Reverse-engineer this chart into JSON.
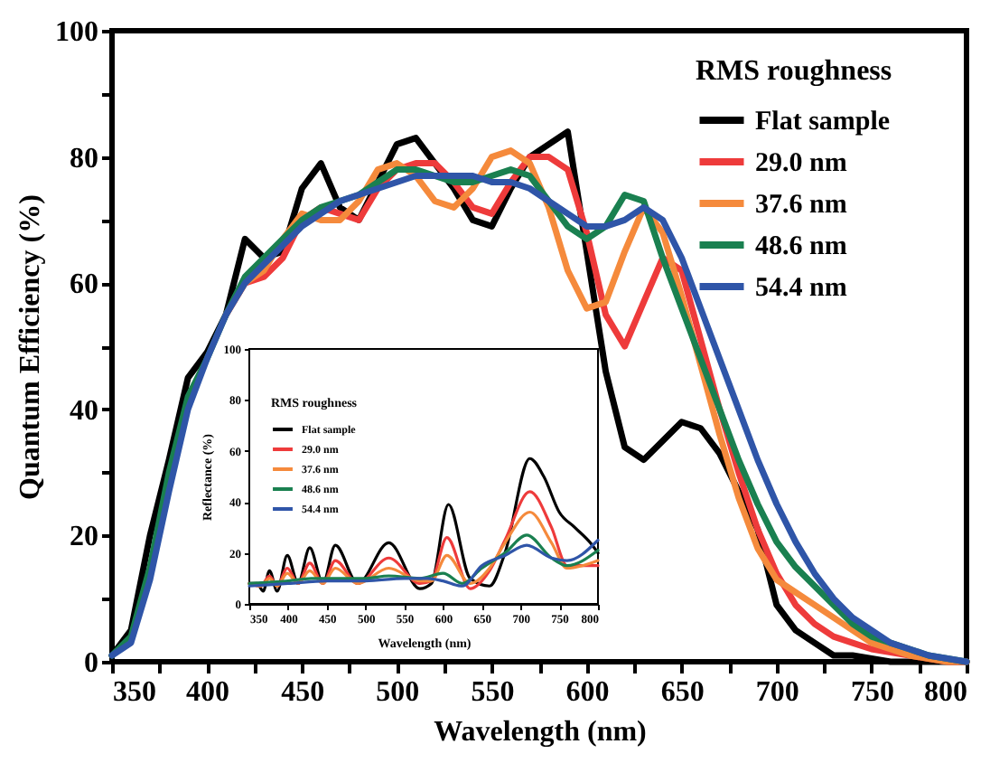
{
  "chart_data": [
    {
      "type": "line",
      "xlabel": "Wavelength (nm)",
      "ylabel": "Quantum Efficiency (%)",
      "legend_title": "RMS roughness",
      "legend": "top right",
      "grid": false,
      "line_style": "solid",
      "xlim": [
        350,
        800
      ],
      "ylim": [
        0,
        100
      ],
      "xticks": [
        350,
        {
          "value": 375,
          "label": null
        },
        400,
        {
          "value": 425,
          "label": null
        },
        450,
        {
          "value": 475,
          "label": null
        },
        500,
        {
          "value": 525,
          "label": null
        },
        550,
        {
          "value": 575,
          "label": null
        },
        600,
        {
          "value": 625,
          "label": null
        },
        650,
        {
          "value": 675,
          "label": null
        },
        700,
        {
          "value": 725,
          "label": null
        },
        750,
        {
          "value": 775,
          "label": null
        },
        800
      ],
      "yticks": [
        0,
        {
          "value": 10,
          "label": null
        },
        20,
        {
          "value": 30,
          "label": null
        },
        40,
        {
          "value": 50,
          "label": null
        },
        60,
        {
          "value": 70,
          "label": null
        },
        80,
        {
          "value": 90,
          "label": null
        },
        100
      ],
      "series": [
        {
          "name": "Flat sample",
          "color": "#000000",
          "x": [
            350,
            360,
            370,
            380,
            390,
            400,
            410,
            420,
            430,
            440,
            450,
            460,
            470,
            480,
            490,
            500,
            510,
            520,
            530,
            540,
            550,
            560,
            570,
            580,
            590,
            600,
            610,
            620,
            630,
            640,
            650,
            660,
            670,
            680,
            690,
            700,
            710,
            720,
            730,
            740,
            750,
            760,
            770,
            780,
            790,
            800
          ],
          "values": [
            1,
            5,
            20,
            32,
            45,
            49,
            55,
            67,
            64,
            65,
            75,
            79,
            72,
            70,
            76,
            82,
            83,
            79,
            75,
            70,
            69,
            75,
            80,
            82,
            84,
            65,
            46,
            34,
            32,
            35,
            38,
            37,
            33,
            27,
            21,
            9,
            5,
            3,
            1,
            1,
            0.5,
            0,
            0,
            0,
            0,
            0
          ]
        },
        {
          "name": "29.0 nm",
          "color": "#ee3b3b",
          "x": [
            410,
            420,
            430,
            440,
            450,
            460,
            470,
            480,
            490,
            500,
            510,
            520,
            530,
            540,
            550,
            560,
            570,
            580,
            590,
            600,
            610,
            620,
            630,
            640,
            650,
            660,
            670,
            680,
            690,
            700,
            710,
            720,
            730,
            740,
            750,
            760,
            770,
            780,
            790,
            800
          ],
          "values": [
            55,
            60,
            61,
            64,
            70,
            72,
            71,
            70,
            75,
            78,
            79,
            79,
            76,
            72,
            71,
            76,
            80,
            80,
            78,
            68,
            55,
            50,
            57,
            64,
            62,
            51,
            40,
            30,
            21,
            14,
            9,
            6,
            4,
            3,
            2,
            1.5,
            1,
            0.5,
            0,
            0
          ]
        },
        {
          "name": "37.6 nm",
          "color": "#f58a3c",
          "x": [
            410,
            420,
            430,
            440,
            450,
            460,
            470,
            480,
            490,
            500,
            510,
            520,
            530,
            540,
            550,
            560,
            570,
            580,
            590,
            600,
            610,
            620,
            630,
            640,
            650,
            660,
            670,
            680,
            690,
            700,
            710,
            720,
            730,
            740,
            750,
            760,
            770,
            780,
            790,
            800
          ],
          "values": [
            55,
            60,
            62,
            67,
            71,
            70,
            70,
            73,
            78,
            79,
            77,
            73,
            72,
            75,
            80,
            81,
            79,
            72,
            62,
            56,
            57,
            65,
            72,
            68,
            58,
            47,
            36,
            26,
            18,
            13,
            11,
            9,
            7,
            5,
            3,
            2,
            1,
            0.5,
            0,
            0
          ]
        },
        {
          "name": "48.6 nm",
          "color": "#1a8050",
          "x": [
            350,
            360,
            370,
            380,
            390,
            400,
            410,
            420,
            430,
            440,
            450,
            460,
            470,
            480,
            490,
            500,
            510,
            520,
            530,
            540,
            550,
            560,
            570,
            580,
            590,
            600,
            610,
            620,
            630,
            640,
            650,
            660,
            670,
            680,
            690,
            700,
            710,
            720,
            730,
            740,
            750,
            760,
            770,
            780,
            790,
            800
          ],
          "values": [
            1,
            4,
            15,
            30,
            42,
            48,
            55,
            61,
            64,
            67,
            70,
            72,
            73,
            74,
            76,
            78,
            78,
            77,
            76,
            76,
            77,
            78,
            77,
            73,
            69,
            67,
            69,
            74,
            73,
            64,
            56,
            48,
            40,
            32,
            25,
            19,
            15,
            12,
            9,
            6,
            4,
            3,
            2,
            1,
            0.5,
            0
          ]
        },
        {
          "name": "54.4 nm",
          "color": "#2f55a8",
          "x": [
            350,
            360,
            370,
            380,
            390,
            400,
            410,
            420,
            430,
            440,
            450,
            460,
            470,
            480,
            490,
            500,
            510,
            520,
            530,
            540,
            550,
            560,
            570,
            580,
            590,
            600,
            610,
            620,
            630,
            640,
            650,
            660,
            670,
            680,
            690,
            700,
            710,
            720,
            730,
            740,
            750,
            760,
            770,
            780,
            790,
            800
          ],
          "values": [
            1,
            3,
            13,
            27,
            40,
            48,
            55,
            60,
            63,
            66,
            69,
            71,
            73,
            74,
            75,
            76,
            77,
            77,
            77,
            77,
            76,
            76,
            75,
            73,
            71,
            69,
            69,
            70,
            72,
            70,
            64,
            56,
            48,
            40,
            32,
            25,
            19,
            14,
            10,
            7,
            5,
            3,
            2,
            1,
            0.5,
            0
          ]
        }
      ]
    },
    {
      "type": "line",
      "xlabel": "Wavelength (nm)",
      "ylabel": "Reflectance (%)",
      "legend_title": "RMS roughness",
      "legend": "top left",
      "grid": false,
      "line_style": "solid",
      "xlim": [
        350,
        800
      ],
      "ylim": [
        0,
        100
      ],
      "xticks": [
        350,
        400,
        450,
        500,
        550,
        600,
        650,
        700,
        750,
        800
      ],
      "yticks": [
        0,
        20,
        40,
        60,
        80,
        100
      ],
      "series": [
        {
          "name": "Flat sample",
          "color": "#000000",
          "x": [
            350,
            360,
            368,
            376,
            386,
            399,
            413,
            428,
            445,
            461,
            490,
            530,
            570,
            585,
            607,
            635,
            660,
            680,
            712,
            730,
            750,
            770,
            790,
            800
          ],
          "values": [
            8,
            8,
            5,
            13,
            5,
            19,
            8,
            22,
            8,
            23,
            8,
            24,
            6,
            8,
            39,
            10,
            7,
            20,
            57,
            50,
            36,
            30,
            24,
            20
          ]
        },
        {
          "name": "29.0 nm",
          "color": "#ee3b3b",
          "x": [
            350,
            365,
            376,
            386,
            399,
            413,
            428,
            445,
            461,
            490,
            530,
            570,
            585,
            605,
            635,
            660,
            680,
            712,
            740,
            760,
            780,
            800
          ],
          "values": [
            8,
            7,
            11,
            7,
            14,
            8,
            16,
            8,
            17,
            8,
            18,
            8,
            9,
            26,
            6,
            13,
            25,
            44,
            30,
            15,
            15,
            15
          ]
        },
        {
          "name": "37.6 nm",
          "color": "#f58a3c",
          "x": [
            350,
            365,
            376,
            386,
            399,
            413,
            428,
            445,
            461,
            490,
            530,
            570,
            585,
            605,
            635,
            660,
            680,
            712,
            740,
            760,
            780,
            800
          ],
          "values": [
            8,
            7,
            10,
            7,
            12,
            8,
            13,
            8,
            14,
            8,
            14,
            9,
            9,
            19,
            8,
            14,
            24,
            36,
            24,
            14,
            15,
            17
          ]
        },
        {
          "name": "48.6 nm",
          "color": "#1a8050",
          "x": [
            350,
            400,
            430,
            460,
            500,
            530,
            570,
            600,
            625,
            650,
            680,
            708,
            740,
            760,
            800
          ],
          "values": [
            8,
            9,
            10,
            10,
            10,
            11,
            10,
            12,
            8,
            14,
            20,
            27,
            18,
            15,
            21
          ]
        },
        {
          "name": "54.4 nm",
          "color": "#2f55a8",
          "x": [
            350,
            400,
            450,
            500,
            550,
            580,
            600,
            625,
            650,
            680,
            708,
            740,
            760,
            800
          ],
          "values": [
            7,
            8,
            9,
            9,
            10,
            10,
            9,
            7,
            15,
            19,
            23,
            18,
            17,
            25
          ]
        }
      ]
    }
  ]
}
